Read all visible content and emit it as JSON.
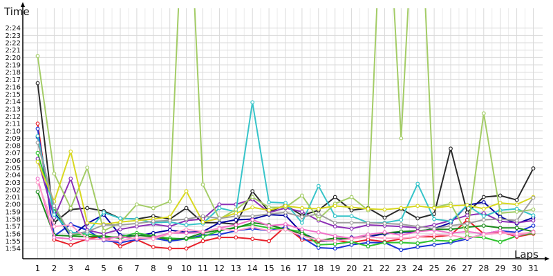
{
  "chart_data": {
    "type": "line",
    "ylabel": "Time",
    "xlabel": "Laps",
    "grid": true,
    "legend": "none",
    "x": [
      1,
      2,
      3,
      4,
      5,
      6,
      7,
      8,
      9,
      10,
      11,
      12,
      13,
      14,
      15,
      16,
      17,
      18,
      19,
      20,
      21,
      22,
      23,
      24,
      25,
      26,
      27,
      28,
      29,
      30,
      31
    ],
    "y_ticks_seconds": [
      114,
      115,
      116,
      117,
      118,
      119,
      120,
      121,
      122,
      123,
      124,
      125,
      126,
      127,
      128,
      129,
      130,
      131,
      132,
      133,
      134,
      135,
      136,
      137,
      138,
      139,
      140,
      141,
      142,
      143,
      144
    ],
    "y_tick_labels": [
      "1:54",
      "1:55",
      "1:56",
      "1:57",
      "1:58",
      "1:59",
      "2:00",
      "2:01",
      "2:02",
      "2:03",
      "2:04",
      "2:05",
      "2:06",
      "2:07",
      "2:08",
      "2:09",
      "2:10",
      "2:11",
      "2:12",
      "2:13",
      "2:14",
      "2:15",
      "2:16",
      "2:17",
      "2:18",
      "2:19",
      "2:20",
      "2:21",
      "2:22",
      "2:23",
      "2:24"
    ],
    "ylim_seconds": [
      112.6,
      146.7
    ],
    "y_unit": "seconds (m:ss)",
    "series": [
      {
        "color": "#2a2a2a",
        "values": [
          136.5,
          117.5,
          119.3,
          119.5,
          119.1,
          118.1,
          118.0,
          118.4,
          118.0,
          119.5,
          117.5,
          117.5,
          117.3,
          121.8,
          119.0,
          119.9,
          118.5,
          119.2,
          121.0,
          119.2,
          119.5,
          118.2,
          119.4,
          118.1,
          118.7,
          127.6,
          118.9,
          121.0,
          121.2,
          120.6,
          124.9
        ]
      },
      {
        "color": "#e8202a",
        "values": [
          131.0,
          115.2,
          114.5,
          115.3,
          115.7,
          114.3,
          115.2,
          114.2,
          114.0,
          114.0,
          115.0,
          115.5,
          115.5,
          115.3,
          115.0,
          117.0,
          115.2,
          115.0,
          115.1,
          114.8,
          115.2,
          114.9,
          115.3,
          115.6,
          115.6,
          115.8,
          117.9,
          116.0,
          116.3,
          115.6,
          116.0
        ]
      },
      {
        "color": "#1a35d6",
        "values": [
          130.3,
          115.7,
          117.3,
          116.5,
          115.1,
          114.8,
          115.2,
          115.4,
          115.0,
          115.3,
          115.8,
          115.9,
          116.4,
          116.7,
          116.4,
          116.9,
          115.5,
          114.1,
          114.0,
          114.5,
          114.8,
          114.8,
          113.8,
          114.2,
          114.5,
          114.8,
          115.3,
          116.0,
          116.4,
          116.2,
          117.1
        ]
      },
      {
        "color": "#0000a0",
        "values": [
          129.2,
          119.0,
          115.6,
          117.4,
          118.6,
          115.8,
          115.7,
          116.1,
          116.5,
          116.2,
          116.3,
          117.5,
          117.9,
          118.0,
          118.6,
          118.5,
          116.1,
          115.1,
          115.0,
          115.5,
          115.6,
          116.0,
          116.2,
          116.3,
          116.7,
          117.5,
          119.9,
          120.3,
          118.3,
          117.4,
          118.2
        ]
      },
      {
        "color": "#2ec42e",
        "values": [
          127.0,
          119.5,
          115.8,
          116.0,
          115.5,
          115.6,
          116.1,
          115.7,
          115.4,
          115.3,
          115.6,
          116.4,
          116.9,
          117.2,
          116.8,
          116.6,
          116.3,
          114.5,
          114.6,
          114.9,
          114.3,
          114.8,
          114.8,
          114.7,
          115.1,
          115.0,
          115.6,
          115.5,
          114.9,
          115.7,
          116.1
        ]
      },
      {
        "color": "#1a8a1a",
        "values": [
          121.7,
          115.8,
          115.7,
          115.6,
          115.7,
          115.4,
          115.8,
          115.6,
          115.2,
          115.4,
          116.1,
          116.5,
          116.8,
          117.5,
          117.2,
          116.6,
          116.0,
          115.1,
          115.4,
          115.3,
          115.9,
          116.1,
          116.3,
          116.4,
          116.6,
          116.6,
          116.9,
          117.1,
          116.8,
          116.8,
          116.3
        ]
      },
      {
        "color": "#8c2fb5",
        "values": [
          126.2,
          118.2,
          123.5,
          116.5,
          116.0,
          116.6,
          117.0,
          117.3,
          117.0,
          117.8,
          118.0,
          120.0,
          120.0,
          120.7,
          118.9,
          119.5,
          119.0,
          117.8,
          117.0,
          116.7,
          117.2,
          117.1,
          117.0,
          116.8,
          117.2,
          117.8,
          118.5,
          118.8,
          117.7,
          117.5,
          117.8
        ]
      },
      {
        "color": "#f070c8",
        "values": [
          123.5,
          115.5,
          115.3,
          115.2,
          115.3,
          115.6,
          115.3,
          115.5,
          116.1,
          116.1,
          116.2,
          116.8,
          117.2,
          117.9,
          117.1,
          117.3,
          116.6,
          116.2,
          115.7,
          115.4,
          115.9,
          116.2,
          115.8,
          116.3,
          116.5,
          116.1,
          116.3,
          116.0,
          116.4,
          115.7,
          116.3
        ]
      },
      {
        "color": "#36c4c9",
        "values": [
          129.3,
          118.6,
          116.2,
          116.1,
          118.9,
          118.1,
          118.0,
          117.5,
          117.6,
          117.2,
          117.4,
          119.5,
          119.0,
          133.9,
          120.3,
          120.2,
          117.5,
          122.5,
          118.4,
          118.4,
          117.5,
          117.5,
          117.9,
          122.8,
          118.0,
          117.7,
          119.9,
          118.4,
          119.2,
          119.4,
          118.5
        ]
      },
      {
        "color": "#a3cc66",
        "values": [
          140.2,
          124.2,
          119.5,
          125.0,
          116.4,
          117.5,
          120.0,
          119.5,
          120.4,
          171.0,
          122.7,
          118.0,
          119.3,
          121.0,
          119.6,
          119.6,
          121.2,
          118.0,
          120.1,
          121.0,
          119.2,
          171.0,
          129.0,
          171.0,
          119.6,
          120.1,
          116.0,
          132.4,
          118.8,
          119.0,
          119.3
        ]
      },
      {
        "color": "#d8d820",
        "values": [
          125.8,
          120.4,
          127.2,
          117.5,
          117.3,
          117.6,
          117.8,
          118.0,
          118.3,
          121.8,
          117.6,
          118.1,
          118.8,
          119.6,
          119.2,
          119.8,
          119.5,
          119.4,
          119.8,
          119.6,
          119.4,
          119.3,
          119.5,
          119.8,
          119.5,
          119.8,
          119.9,
          119.4,
          120.2,
          120.0,
          121.0
        ]
      },
      {
        "color": "#9e9e9e",
        "values": [
          128.4,
          119.8,
          115.9,
          116.3,
          117.2,
          117.2,
          117.4,
          117.7,
          117.8,
          118.0,
          118.4,
          118.1,
          118.4,
          118.4,
          118.7,
          118.9,
          118.3,
          118.7,
          117.5,
          117.5,
          117.5,
          117.4,
          117.3,
          117.0,
          116.7,
          117.1,
          117.4,
          117.9,
          118.0,
          117.8,
          120.9
        ]
      },
      {
        "color": "#ff9fc8",
        "values": [
          123.0,
          117.0,
          117.2,
          115.3,
          115.2,
          115.0,
          115.5,
          115.3,
          116.0,
          116.6,
          116.3,
          116.7,
          116.4,
          116.9,
          116.4,
          116.6,
          115.7,
          115.2,
          115.0,
          115.3,
          115.6,
          115.4,
          115.4,
          115.6,
          115.9,
          115.8,
          115.4,
          115.9,
          116.1,
          116.0,
          116.2
        ]
      }
    ]
  }
}
